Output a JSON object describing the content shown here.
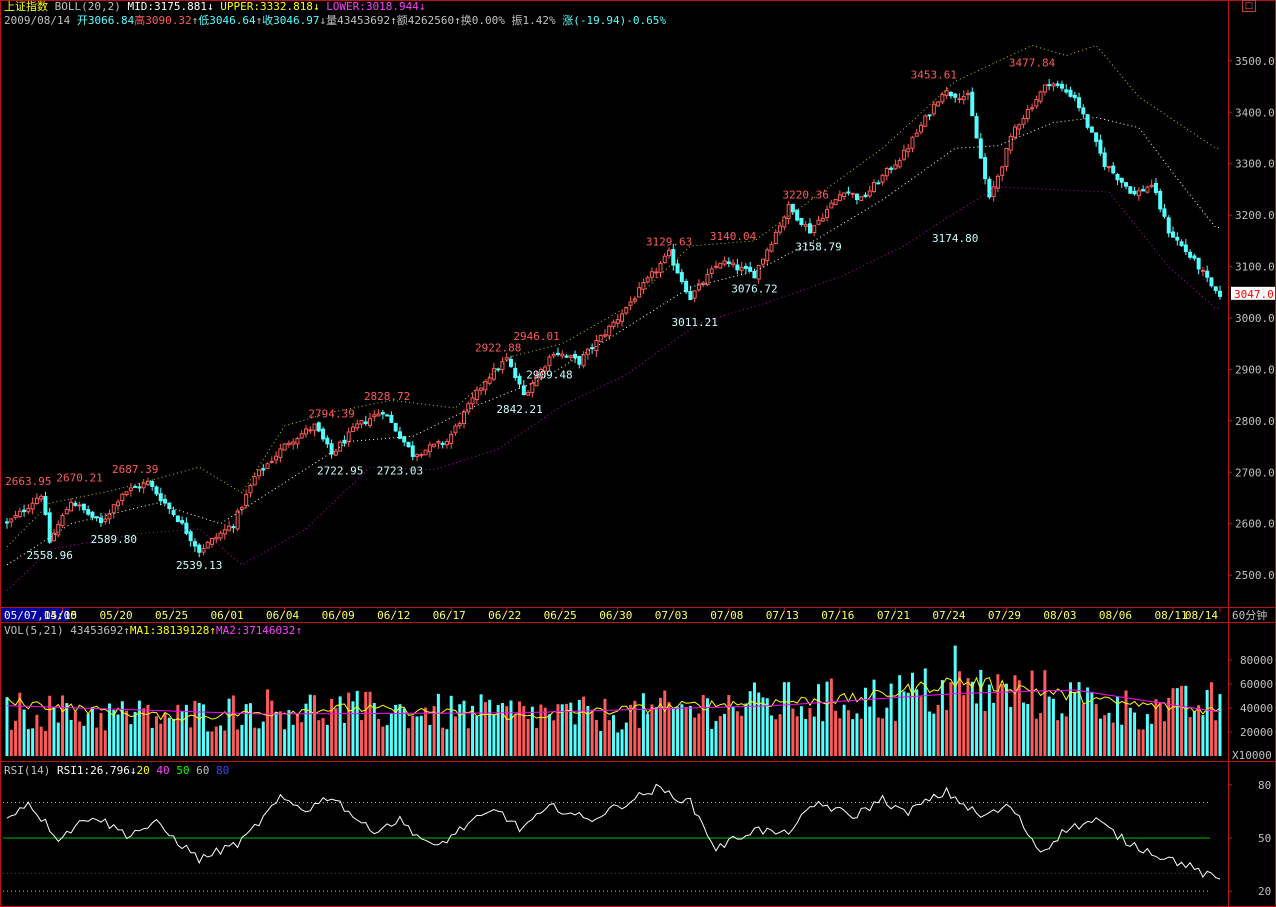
{
  "header": {
    "index_name": "上证指数",
    "indicator": "BOLL(20,2)",
    "mid": "MID:3175.881",
    "upper": "UPPER:3332.818",
    "lower": "LOWER:3018.944",
    "arrow_down": "↓",
    "arrow_up": "↑",
    "date": "2009/08/14",
    "open": "开3066.84",
    "high": "高3090.32",
    "low": "低3046.64",
    "close": "收3046.97",
    "volume": "量43453692",
    "amount": "额4262560",
    "turnover": "换0.00%",
    "amplitude": "振1.42%",
    "change": "涨(-19.94)-0.65%"
  },
  "vol_header": {
    "label": "VOL(5,21)",
    "value": "43453692",
    "ma1": "MA1:38139128",
    "ma2": "MA2:37146032"
  },
  "rsi_header": {
    "label": "RSI(14)",
    "rsi1": "RSI1:26.796",
    "levels": [
      "20",
      "40",
      "50",
      "60",
      "80"
    ]
  },
  "colors": {
    "up": "#ff5a5a",
    "down": "#54ffff",
    "upper_band": "#c8c800",
    "mid_band": "#ffffff",
    "lower_band": "#c000c0",
    "frame": "#c01010",
    "axis_text": "#c0c0c0",
    "rsi_line": "#ffffff",
    "rsi_50": "#00c000",
    "ma1": "#ffff00",
    "ma2": "#ff00ff"
  },
  "chart_data": [
    {
      "type": "candlestick",
      "title": "上证指数 60分钟 BOLL(20,2)",
      "timeframe": "60分钟",
      "x_ticks": [
        "05/07,14:00",
        "05/15",
        "05/20",
        "05/25",
        "06/01",
        "06/04",
        "06/09",
        "06/12",
        "06/17",
        "06/22",
        "06/25",
        "06/30",
        "07/03",
        "07/08",
        "07/13",
        "07/16",
        "07/21",
        "07/24",
        "07/29",
        "08/03",
        "08/06",
        "08/11",
        "08/14"
      ],
      "y_ticks": [
        2500,
        2600,
        2700,
        2800,
        2900,
        3000,
        3100,
        3200,
        3300,
        3400,
        3500
      ],
      "ylim": [
        2440,
        3560
      ],
      "current_price_label": "3047.0",
      "anchors": [
        {
          "bar": 0,
          "price": 2600
        },
        {
          "bar": 3,
          "price": 2620
        },
        {
          "bar": 8,
          "price": 2658
        },
        {
          "bar": 10,
          "price": 2565
        },
        {
          "bar": 15,
          "price": 2645
        },
        {
          "bar": 22,
          "price": 2600
        },
        {
          "bar": 27,
          "price": 2660
        },
        {
          "bar": 33,
          "price": 2680
        },
        {
          "bar": 40,
          "price": 2610
        },
        {
          "bar": 45,
          "price": 2548
        },
        {
          "bar": 53,
          "price": 2600
        },
        {
          "bar": 58,
          "price": 2690
        },
        {
          "bar": 66,
          "price": 2760
        },
        {
          "bar": 72,
          "price": 2790
        },
        {
          "bar": 76,
          "price": 2735
        },
        {
          "bar": 82,
          "price": 2790
        },
        {
          "bar": 88,
          "price": 2820
        },
        {
          "bar": 95,
          "price": 2735
        },
        {
          "bar": 103,
          "price": 2760
        },
        {
          "bar": 112,
          "price": 2880
        },
        {
          "bar": 117,
          "price": 2920
        },
        {
          "bar": 121,
          "price": 2850
        },
        {
          "bar": 128,
          "price": 2935
        },
        {
          "bar": 134,
          "price": 2915
        },
        {
          "bar": 143,
          "price": 3000
        },
        {
          "bar": 155,
          "price": 3125
        },
        {
          "bar": 160,
          "price": 3040
        },
        {
          "bar": 167,
          "price": 3110
        },
        {
          "bar": 175,
          "price": 3085
        },
        {
          "bar": 183,
          "price": 3215
        },
        {
          "bar": 188,
          "price": 3170
        },
        {
          "bar": 196,
          "price": 3250
        },
        {
          "bar": 200,
          "price": 3230
        },
        {
          "bar": 210,
          "price": 3320
        },
        {
          "bar": 219,
          "price": 3440
        },
        {
          "bar": 225,
          "price": 3430
        },
        {
          "bar": 230,
          "price": 3230
        },
        {
          "bar": 236,
          "price": 3370
        },
        {
          "bar": 244,
          "price": 3460
        },
        {
          "bar": 250,
          "price": 3430
        },
        {
          "bar": 257,
          "price": 3300
        },
        {
          "bar": 264,
          "price": 3240
        },
        {
          "bar": 268,
          "price": 3260
        },
        {
          "bar": 272,
          "price": 3170
        },
        {
          "bar": 279,
          "price": 3100
        },
        {
          "bar": 283,
          "price": 3047
        }
      ],
      "annotations": [
        {
          "label": "2663.95",
          "bar": 5,
          "price": 2663.95,
          "kind": "high"
        },
        {
          "label": "2670.21",
          "bar": 17,
          "price": 2670.21,
          "kind": "high"
        },
        {
          "label": "2687.39",
          "bar": 30,
          "price": 2687.39,
          "kind": "high"
        },
        {
          "label": "2558.96",
          "bar": 10,
          "price": 2558.96,
          "kind": "low"
        },
        {
          "label": "2589.80",
          "bar": 25,
          "price": 2589.8,
          "kind": "low"
        },
        {
          "label": "2539.13",
          "bar": 45,
          "price": 2539.13,
          "kind": "low"
        },
        {
          "label": "2794.39",
          "bar": 76,
          "price": 2794.39,
          "kind": "high"
        },
        {
          "label": "2828.72",
          "bar": 89,
          "price": 2828.72,
          "kind": "high"
        },
        {
          "label": "2722.95",
          "bar": 78,
          "price": 2722.95,
          "kind": "low"
        },
        {
          "label": "2723.03",
          "bar": 92,
          "price": 2723.03,
          "kind": "low"
        },
        {
          "label": "2922.88",
          "bar": 115,
          "price": 2922.88,
          "kind": "high"
        },
        {
          "label": "2946.01",
          "bar": 124,
          "price": 2946.01,
          "kind": "high"
        },
        {
          "label": "2842.21",
          "bar": 120,
          "price": 2842.21,
          "kind": "low"
        },
        {
          "label": "2909.48",
          "bar": 127,
          "price": 2909.48,
          "kind": "low"
        },
        {
          "label": "3129.63",
          "bar": 155,
          "price": 3129.63,
          "kind": "high"
        },
        {
          "label": "3140.04",
          "bar": 170,
          "price": 3140.04,
          "kind": "high"
        },
        {
          "label": "3011.21",
          "bar": 161,
          "price": 3011.21,
          "kind": "low"
        },
        {
          "label": "3076.72",
          "bar": 175,
          "price": 3076.72,
          "kind": "low"
        },
        {
          "label": "3220.36",
          "bar": 187,
          "price": 3220.36,
          "kind": "high"
        },
        {
          "label": "3158.79",
          "bar": 190,
          "price": 3158.79,
          "kind": "low"
        },
        {
          "label": "3453.61",
          "bar": 217,
          "price": 3453.61,
          "kind": "high"
        },
        {
          "label": "3174.80",
          "bar": 222,
          "price": 3174.8,
          "kind": "low"
        },
        {
          "label": "3477.84",
          "bar": 240,
          "price": 3477.84,
          "kind": "high"
        }
      ],
      "upper_band": [
        {
          "bar": 0,
          "price": 2555
        },
        {
          "bar": 10,
          "price": 2640
        },
        {
          "bar": 25,
          "price": 2665
        },
        {
          "bar": 45,
          "price": 2710
        },
        {
          "bar": 55,
          "price": 2660
        },
        {
          "bar": 65,
          "price": 2790
        },
        {
          "bar": 75,
          "price": 2815
        },
        {
          "bar": 90,
          "price": 2840
        },
        {
          "bar": 105,
          "price": 2825
        },
        {
          "bar": 118,
          "price": 2925
        },
        {
          "bar": 130,
          "price": 2950
        },
        {
          "bar": 145,
          "price": 3020
        },
        {
          "bar": 160,
          "price": 3140
        },
        {
          "bar": 175,
          "price": 3150
        },
        {
          "bar": 190,
          "price": 3240
        },
        {
          "bar": 205,
          "price": 3330
        },
        {
          "bar": 222,
          "price": 3460
        },
        {
          "bar": 240,
          "price": 3530
        },
        {
          "bar": 248,
          "price": 3510
        },
        {
          "bar": 255,
          "price": 3530
        },
        {
          "bar": 265,
          "price": 3430
        },
        {
          "bar": 283,
          "price": 3330
        }
      ],
      "mid_band": [
        {
          "bar": 0,
          "price": 2520
        },
        {
          "bar": 15,
          "price": 2600
        },
        {
          "bar": 35,
          "price": 2640
        },
        {
          "bar": 50,
          "price": 2600
        },
        {
          "bar": 65,
          "price": 2680
        },
        {
          "bar": 80,
          "price": 2760
        },
        {
          "bar": 95,
          "price": 2770
        },
        {
          "bar": 110,
          "price": 2830
        },
        {
          "bar": 125,
          "price": 2880
        },
        {
          "bar": 140,
          "price": 2955
        },
        {
          "bar": 160,
          "price": 3060
        },
        {
          "bar": 175,
          "price": 3090
        },
        {
          "bar": 190,
          "price": 3155
        },
        {
          "bar": 205,
          "price": 3230
        },
        {
          "bar": 222,
          "price": 3330
        },
        {
          "bar": 232,
          "price": 3335
        },
        {
          "bar": 245,
          "price": 3380
        },
        {
          "bar": 255,
          "price": 3390
        },
        {
          "bar": 265,
          "price": 3370
        },
        {
          "bar": 275,
          "price": 3260
        },
        {
          "bar": 283,
          "price": 3176
        }
      ],
      "lower_band": [
        {
          "bar": 0,
          "price": 2470
        },
        {
          "bar": 10,
          "price": 2550
        },
        {
          "bar": 30,
          "price": 2580
        },
        {
          "bar": 45,
          "price": 2590
        },
        {
          "bar": 55,
          "price": 2520
        },
        {
          "bar": 70,
          "price": 2590
        },
        {
          "bar": 85,
          "price": 2710
        },
        {
          "bar": 100,
          "price": 2705
        },
        {
          "bar": 115,
          "price": 2745
        },
        {
          "bar": 130,
          "price": 2830
        },
        {
          "bar": 145,
          "price": 2890
        },
        {
          "bar": 162,
          "price": 2990
        },
        {
          "bar": 178,
          "price": 3030
        },
        {
          "bar": 195,
          "price": 3080
        },
        {
          "bar": 210,
          "price": 3140
        },
        {
          "bar": 222,
          "price": 3205
        },
        {
          "bar": 232,
          "price": 3255
        },
        {
          "bar": 245,
          "price": 3250
        },
        {
          "bar": 258,
          "price": 3245
        },
        {
          "bar": 272,
          "price": 3100
        },
        {
          "bar": 283,
          "price": 3019
        }
      ]
    },
    {
      "type": "bar",
      "title": "VOL(5,21)",
      "unit": "X10000",
      "y_ticks": [
        20000,
        40000,
        60000,
        80000
      ],
      "ylim": [
        0,
        100000
      ],
      "anchors": [
        {
          "bar": 0,
          "value": 38000
        },
        {
          "bar": 40,
          "value": 32000
        },
        {
          "bar": 60,
          "value": 40000
        },
        {
          "bar": 100,
          "value": 36000
        },
        {
          "bar": 140,
          "value": 34000
        },
        {
          "bar": 170,
          "value": 42000
        },
        {
          "bar": 200,
          "value": 46000
        },
        {
          "bar": 222,
          "value": 55000
        },
        {
          "bar": 245,
          "value": 50000
        },
        {
          "bar": 265,
          "value": 38000
        },
        {
          "bar": 283,
          "value": 43454
        }
      ],
      "ma1": [
        {
          "bar": 0,
          "value": 45000
        },
        {
          "bar": 40,
          "value": 32000
        },
        {
          "bar": 80,
          "value": 40000
        },
        {
          "bar": 120,
          "value": 33000
        },
        {
          "bar": 160,
          "value": 42000
        },
        {
          "bar": 200,
          "value": 48000
        },
        {
          "bar": 222,
          "value": 62000
        },
        {
          "bar": 235,
          "value": 58000
        },
        {
          "bar": 260,
          "value": 44000
        },
        {
          "bar": 283,
          "value": 38139
        }
      ],
      "ma2": [
        {
          "bar": 0,
          "value": 42000
        },
        {
          "bar": 60,
          "value": 35000
        },
        {
          "bar": 120,
          "value": 36000
        },
        {
          "bar": 180,
          "value": 42000
        },
        {
          "bar": 222,
          "value": 52000
        },
        {
          "bar": 250,
          "value": 55000
        },
        {
          "bar": 283,
          "value": 37146
        }
      ]
    },
    {
      "type": "line",
      "title": "RSI(14)",
      "y_ticks": [
        20,
        50,
        80
      ],
      "ylim": [
        15,
        85
      ],
      "levels": [
        {
          "value": 30,
          "color": "#c000c0"
        },
        {
          "value": 50,
          "color": "#00c000"
        },
        {
          "value": 70,
          "color": "#c0c0c0"
        },
        {
          "value": 20,
          "color": "#c0c0c0"
        }
      ],
      "anchors": [
        {
          "bar": 0,
          "value": 62
        },
        {
          "bar": 5,
          "value": 70
        },
        {
          "bar": 12,
          "value": 50
        },
        {
          "bar": 20,
          "value": 63
        },
        {
          "bar": 28,
          "value": 52
        },
        {
          "bar": 35,
          "value": 58
        },
        {
          "bar": 45,
          "value": 38
        },
        {
          "bar": 55,
          "value": 48
        },
        {
          "bar": 64,
          "value": 72
        },
        {
          "bar": 70,
          "value": 66
        },
        {
          "bar": 76,
          "value": 74
        },
        {
          "bar": 85,
          "value": 54
        },
        {
          "bar": 92,
          "value": 60
        },
        {
          "bar": 100,
          "value": 44
        },
        {
          "bar": 108,
          "value": 58
        },
        {
          "bar": 115,
          "value": 66
        },
        {
          "bar": 120,
          "value": 55
        },
        {
          "bar": 128,
          "value": 68
        },
        {
          "bar": 136,
          "value": 60
        },
        {
          "bar": 145,
          "value": 70
        },
        {
          "bar": 152,
          "value": 78
        },
        {
          "bar": 160,
          "value": 70
        },
        {
          "bar": 166,
          "value": 44
        },
        {
          "bar": 175,
          "value": 55
        },
        {
          "bar": 182,
          "value": 52
        },
        {
          "bar": 190,
          "value": 70
        },
        {
          "bar": 198,
          "value": 62
        },
        {
          "bar": 205,
          "value": 72
        },
        {
          "bar": 210,
          "value": 64
        },
        {
          "bar": 220,
          "value": 76
        },
        {
          "bar": 228,
          "value": 62
        },
        {
          "bar": 235,
          "value": 68
        },
        {
          "bar": 242,
          "value": 42
        },
        {
          "bar": 248,
          "value": 55
        },
        {
          "bar": 255,
          "value": 60
        },
        {
          "bar": 262,
          "value": 48
        },
        {
          "bar": 270,
          "value": 40
        },
        {
          "bar": 276,
          "value": 35
        },
        {
          "bar": 280,
          "value": 30
        },
        {
          "bar": 283,
          "value": 26.8
        }
      ]
    }
  ]
}
